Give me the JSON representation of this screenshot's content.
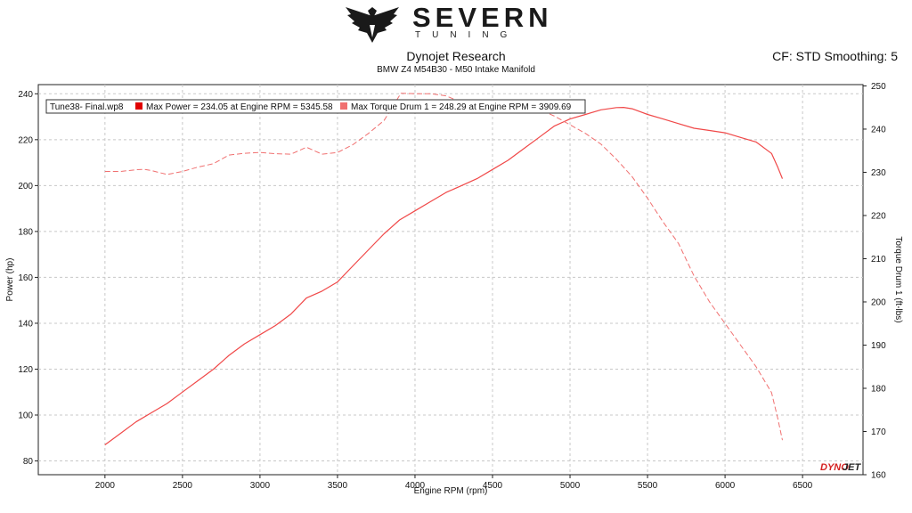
{
  "brand": {
    "name": "SEVERN",
    "tagline": "TUNING"
  },
  "header": {
    "title": "Dynojet Research",
    "subtitle": "BMW Z4 M54B30 - M50 Intake Manifold",
    "cf": "CF: STD Smoothing: 5"
  },
  "legend": {
    "run": "Tune38- Final.wp8",
    "max_power": "Max Power = 234.05 at Engine RPM = 5345.58",
    "max_torque": "Max Torque Drum 1 = 248.29 at Engine RPM = 3909.69"
  },
  "watermark": {
    "dyno": "DYNO",
    "jet": "JET"
  },
  "colors": {
    "power": "#f04848",
    "torque": "#f07070",
    "grid": "#c8c8c8"
  },
  "chart_data": {
    "type": "line",
    "xlabel": "Engine RPM (rpm)",
    "ylabel": "Power (hp)",
    "y2label": "Torque Drum 1 (ft-lbs)",
    "xlim": [
      1570,
      6890
    ],
    "ylim": [
      74,
      244
    ],
    "y2lim": [
      160,
      250.3
    ],
    "xticks": [
      2000,
      2500,
      3000,
      3500,
      4000,
      4500,
      5000,
      5500,
      6000,
      6500
    ],
    "yticks": [
      80,
      100,
      120,
      140,
      160,
      180,
      200,
      220,
      240
    ],
    "y2ticks": [
      160,
      170,
      180,
      190,
      200,
      210,
      220,
      230,
      240,
      250
    ],
    "grid": true,
    "legend_position": "top-left",
    "series": [
      {
        "name": "Power",
        "axis": "left",
        "style": "solid",
        "points": [
          [
            2000,
            87
          ],
          [
            2100,
            92
          ],
          [
            2200,
            97
          ],
          [
            2300,
            101
          ],
          [
            2400,
            105
          ],
          [
            2500,
            110
          ],
          [
            2600,
            115
          ],
          [
            2700,
            120
          ],
          [
            2800,
            126
          ],
          [
            2900,
            131
          ],
          [
            3000,
            135
          ],
          [
            3100,
            139
          ],
          [
            3200,
            144
          ],
          [
            3300,
            151
          ],
          [
            3400,
            154
          ],
          [
            3500,
            158
          ],
          [
            3600,
            165
          ],
          [
            3700,
            172
          ],
          [
            3800,
            179
          ],
          [
            3900,
            185
          ],
          [
            4000,
            189
          ],
          [
            4100,
            193
          ],
          [
            4200,
            197
          ],
          [
            4300,
            200
          ],
          [
            4400,
            203
          ],
          [
            4500,
            207
          ],
          [
            4600,
            211
          ],
          [
            4700,
            216
          ],
          [
            4800,
            221
          ],
          [
            4900,
            226
          ],
          [
            5000,
            229
          ],
          [
            5100,
            231
          ],
          [
            5200,
            233
          ],
          [
            5300,
            234
          ],
          [
            5345.58,
            234.05
          ],
          [
            5400,
            233.5
          ],
          [
            5500,
            231
          ],
          [
            5600,
            229
          ],
          [
            5700,
            227
          ],
          [
            5800,
            225
          ],
          [
            5900,
            224
          ],
          [
            6000,
            223
          ],
          [
            6100,
            221
          ],
          [
            6200,
            219
          ],
          [
            6300,
            214
          ],
          [
            6340,
            208
          ],
          [
            6370,
            203
          ]
        ]
      },
      {
        "name": "Torque Drum 1",
        "axis": "right",
        "style": "dashed",
        "points": [
          [
            2000,
            230.2
          ],
          [
            2100,
            230.2
          ],
          [
            2200,
            230.6
          ],
          [
            2250,
            230.7
          ],
          [
            2300,
            230.4
          ],
          [
            2400,
            229.5
          ],
          [
            2500,
            230.2
          ],
          [
            2600,
            231.2
          ],
          [
            2700,
            232
          ],
          [
            2800,
            234
          ],
          [
            2900,
            234.4
          ],
          [
            3000,
            234.6
          ],
          [
            3100,
            234.3
          ],
          [
            3200,
            234.2
          ],
          [
            3300,
            235.8
          ],
          [
            3400,
            234.2
          ],
          [
            3500,
            234.6
          ],
          [
            3600,
            236.4
          ],
          [
            3700,
            239
          ],
          [
            3800,
            242
          ],
          [
            3909.69,
            248.29
          ],
          [
            4000,
            248.2
          ],
          [
            4100,
            248.2
          ],
          [
            4200,
            247.7
          ],
          [
            4300,
            246.2
          ],
          [
            4400,
            245
          ],
          [
            4500,
            244.7
          ],
          [
            4600,
            244.4
          ],
          [
            4700,
            244.8
          ],
          [
            4800,
            244.6
          ],
          [
            4900,
            243
          ],
          [
            5000,
            241
          ],
          [
            5100,
            239
          ],
          [
            5200,
            236.5
          ],
          [
            5300,
            233
          ],
          [
            5400,
            229
          ],
          [
            5500,
            224
          ],
          [
            5600,
            218.5
          ],
          [
            5700,
            213.5
          ],
          [
            5800,
            206
          ],
          [
            5900,
            200
          ],
          [
            6000,
            195
          ],
          [
            6100,
            190
          ],
          [
            6200,
            185
          ],
          [
            6300,
            179
          ],
          [
            6340,
            173
          ],
          [
            6370,
            168
          ]
        ]
      }
    ]
  }
}
